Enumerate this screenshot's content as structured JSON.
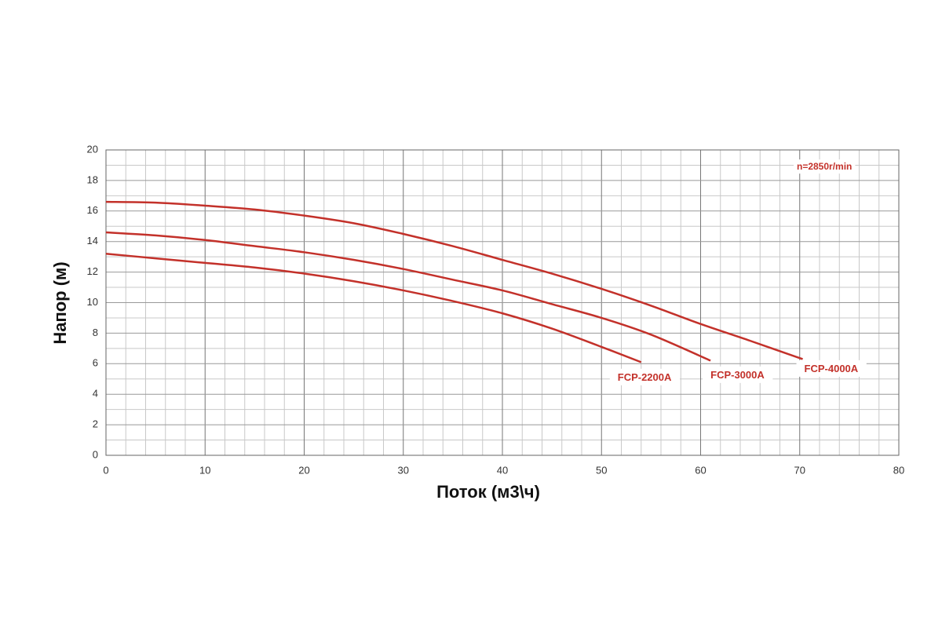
{
  "chart_data": {
    "type": "line",
    "x_label": "Поток (м3\\ч)",
    "y_label": "Напор (м)",
    "annotation": "n=2850r/min",
    "series": [
      {
        "name": "FCP-2200A",
        "color": "#c3312a",
        "x": [
          0,
          5,
          10,
          15,
          20,
          25,
          30,
          35,
          40,
          45,
          50,
          54
        ],
        "values": [
          13.2,
          12.9,
          12.6,
          12.3,
          11.9,
          11.4,
          10.8,
          10.1,
          9.3,
          8.3,
          7.1,
          6.1
        ]
      },
      {
        "name": "FCP-3000A",
        "color": "#c3312a",
        "x": [
          0,
          5,
          10,
          15,
          20,
          25,
          30,
          35,
          40,
          45,
          50,
          55,
          61
        ],
        "values": [
          14.6,
          14.4,
          14.1,
          13.7,
          13.3,
          12.8,
          12.2,
          11.5,
          10.8,
          9.9,
          9.0,
          7.9,
          6.2
        ]
      },
      {
        "name": "FCP-4000A",
        "color": "#c3312a",
        "x": [
          0,
          5,
          10,
          15,
          20,
          25,
          30,
          35,
          40,
          45,
          50,
          55,
          60,
          65,
          70.3
        ],
        "values": [
          16.6,
          16.55,
          16.35,
          16.1,
          15.7,
          15.2,
          14.5,
          13.7,
          12.8,
          11.9,
          10.9,
          9.8,
          8.6,
          7.5,
          6.3
        ]
      }
    ],
    "xlim": [
      0,
      80
    ],
    "xticks": [
      0,
      10,
      20,
      30,
      40,
      50,
      60,
      70,
      80
    ],
    "ylim": [
      0,
      20
    ],
    "yticks": [
      0,
      2,
      4,
      6,
      8,
      10,
      12,
      14,
      16,
      18,
      20
    ],
    "grid": true,
    "minor_divisions": {
      "x": 5,
      "y": 2
    }
  }
}
